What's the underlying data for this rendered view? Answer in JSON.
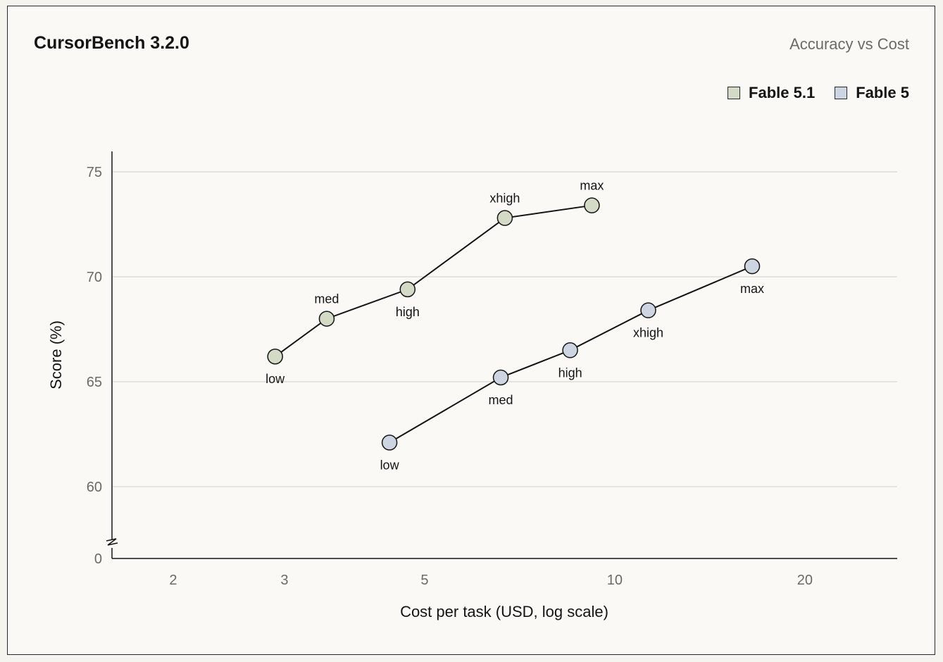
{
  "header": {
    "title": "CursorBench 3.2.0",
    "subtitle": "Accuracy vs Cost"
  },
  "colors": {
    "fable51": "#d3dac6",
    "fable5": "#cdd5e2",
    "grid": "#d9d8d2",
    "line": "#141413"
  },
  "chart_data": {
    "type": "line",
    "title": "CursorBench 3.2.0",
    "subtitle": "Accuracy vs Cost",
    "xlabel": "Cost per task (USD, log scale)",
    "ylabel": "Score (%)",
    "x_scale": "log",
    "x_ticks": [
      2,
      3,
      5,
      10,
      20
    ],
    "x_tick_labels": [
      "2",
      "3",
      "5",
      "10",
      "20"
    ],
    "y_ticks": [
      60,
      65,
      70,
      75
    ],
    "y_axis_break": true,
    "y_axis_zero_label": "0",
    "ylim": [
      60,
      75
    ],
    "xlim": [
      1.6,
      28
    ],
    "grid": true,
    "legend_position": "top-right",
    "series": [
      {
        "name": "Fable 5.1",
        "color_key": "fable51",
        "points": [
          {
            "label": "low",
            "x": 2.9,
            "y": 66.2,
            "label_pos": "below"
          },
          {
            "label": "med",
            "x": 3.5,
            "y": 68.0,
            "label_pos": "above"
          },
          {
            "label": "high",
            "x": 4.7,
            "y": 69.4,
            "label_pos": "below"
          },
          {
            "label": "xhigh",
            "x": 6.7,
            "y": 72.8,
            "label_pos": "above"
          },
          {
            "label": "max",
            "x": 9.2,
            "y": 73.4,
            "label_pos": "above"
          }
        ]
      },
      {
        "name": "Fable 5",
        "color_key": "fable5",
        "points": [
          {
            "label": "low",
            "x": 4.4,
            "y": 62.1,
            "label_pos": "below"
          },
          {
            "label": "med",
            "x": 6.6,
            "y": 65.2,
            "label_pos": "below"
          },
          {
            "label": "high",
            "x": 8.5,
            "y": 66.5,
            "label_pos": "below"
          },
          {
            "label": "xhigh",
            "x": 11.3,
            "y": 68.4,
            "label_pos": "below"
          },
          {
            "label": "max",
            "x": 16.5,
            "y": 70.5,
            "label_pos": "below"
          }
        ]
      }
    ]
  }
}
